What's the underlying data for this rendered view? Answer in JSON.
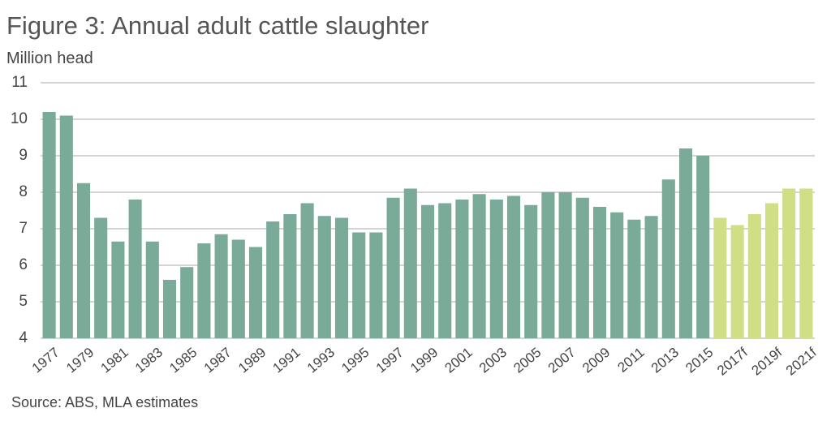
{
  "chart_data": {
    "type": "bar",
    "title": "Figure 3: Annual adult cattle slaughter",
    "y_label": "Million head",
    "source": "Source: ABS, MLA estimates",
    "categories": [
      "1977",
      null,
      "1979",
      null,
      "1981",
      null,
      "1983",
      null,
      "1985",
      null,
      "1987",
      null,
      "1989",
      null,
      "1991",
      null,
      "1993",
      null,
      "1995",
      null,
      "1997",
      null,
      "1999",
      null,
      "2001",
      null,
      "2003",
      null,
      "2005",
      null,
      "2007",
      null,
      "2009",
      null,
      "2011",
      null,
      "2013",
      null,
      "2015",
      null,
      "2017f",
      null,
      "2019f",
      null,
      "2021f"
    ],
    "values": [
      10.2,
      10.1,
      8.25,
      7.3,
      6.65,
      7.8,
      6.65,
      5.6,
      5.95,
      6.6,
      6.85,
      6.7,
      6.5,
      7.2,
      7.4,
      7.7,
      7.35,
      7.3,
      6.9,
      6.9,
      7.85,
      8.1,
      7.65,
      7.7,
      7.8,
      7.95,
      7.8,
      7.9,
      7.65,
      8.0,
      8.0,
      7.85,
      7.6,
      7.45,
      7.25,
      7.35,
      8.35,
      9.2,
      9.0,
      7.3,
      7.1,
      7.4,
      7.7,
      8.1,
      8.1
    ],
    "colors": [
      "#7aab98",
      "#7aab98",
      "#7aab98",
      "#7aab98",
      "#7aab98",
      "#7aab98",
      "#7aab98",
      "#7aab98",
      "#7aab98",
      "#7aab98",
      "#7aab98",
      "#7aab98",
      "#7aab98",
      "#7aab98",
      "#7aab98",
      "#7aab98",
      "#7aab98",
      "#7aab98",
      "#7aab98",
      "#7aab98",
      "#7aab98",
      "#7aab98",
      "#7aab98",
      "#7aab98",
      "#7aab98",
      "#7aab98",
      "#7aab98",
      "#7aab98",
      "#7aab98",
      "#7aab98",
      "#7aab98",
      "#7aab98",
      "#7aab98",
      "#7aab98",
      "#7aab98",
      "#7aab98",
      "#7aab98",
      "#7aab98",
      "#7aab98",
      "#d0de86",
      "#d0de86",
      "#d0de86",
      "#d0de86",
      "#d0de86",
      "#d0de86"
    ],
    "ylim": [
      4,
      11
    ],
    "yticks": [
      4,
      5,
      6,
      7,
      8,
      9,
      10,
      11
    ],
    "grid": true
  }
}
